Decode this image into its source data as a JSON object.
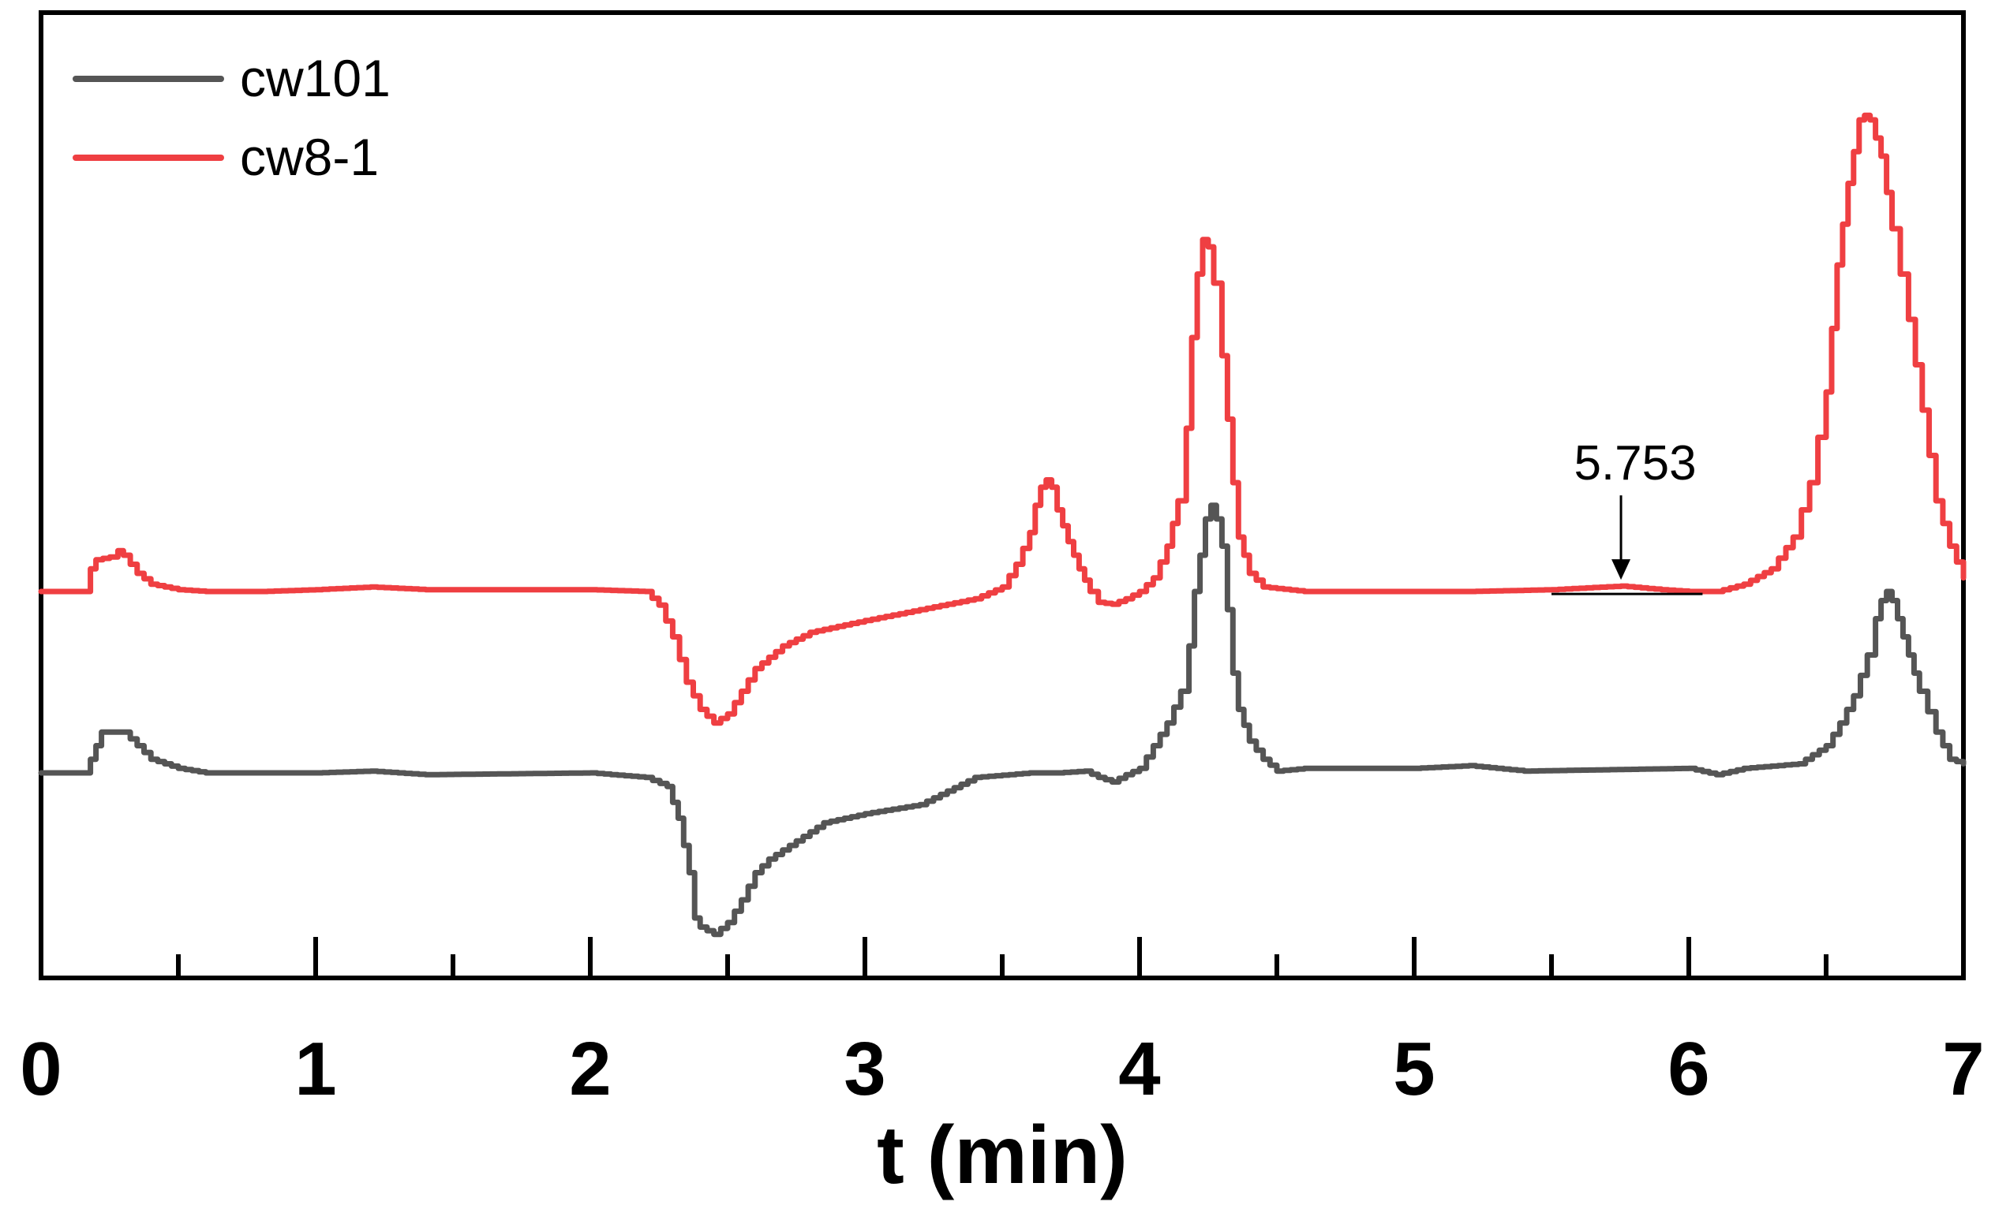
{
  "chart_data": {
    "type": "line",
    "xlabel": "t (min)",
    "xlim": [
      0,
      7
    ],
    "x_major_ticks": [
      0,
      1,
      2,
      3,
      4,
      5,
      6,
      7
    ],
    "x_tick_labels": [
      "0",
      "1",
      "2",
      "3",
      "4",
      "5",
      "6",
      "7"
    ],
    "x_minor_ticks": [
      0.5,
      1.5,
      2.5,
      3.5,
      4.5,
      5.5,
      6.5
    ],
    "ylim": [
      0,
      100
    ],
    "y_axis_labeled": false,
    "grid": false,
    "legend_position": "top-left",
    "series": [
      {
        "name": "cw101",
        "color": "#555555",
        "points": [
          [
            0.0,
            20.0
          ],
          [
            0.15,
            20.0
          ],
          [
            0.18,
            21.5
          ],
          [
            0.2,
            23.0
          ],
          [
            0.22,
            24.5
          ],
          [
            0.28,
            24.5
          ],
          [
            0.3,
            24.5
          ],
          [
            0.35,
            23.0
          ],
          [
            0.4,
            21.5
          ],
          [
            0.5,
            20.5
          ],
          [
            0.6,
            20.0
          ],
          [
            1.0,
            20.0
          ],
          [
            1.2,
            20.2
          ],
          [
            1.4,
            19.8
          ],
          [
            2.0,
            20.0
          ],
          [
            2.2,
            19.5
          ],
          [
            2.28,
            18.5
          ],
          [
            2.32,
            15.0
          ],
          [
            2.36,
            9.0
          ],
          [
            2.38,
            4.0
          ],
          [
            2.4,
            3.0
          ],
          [
            2.45,
            2.2
          ],
          [
            2.5,
            3.5
          ],
          [
            2.55,
            6.0
          ],
          [
            2.6,
            9.0
          ],
          [
            2.65,
            10.5
          ],
          [
            2.75,
            12.5
          ],
          [
            2.85,
            14.5
          ],
          [
            3.0,
            15.5
          ],
          [
            3.2,
            16.5
          ],
          [
            3.4,
            19.5
          ],
          [
            3.6,
            20.0
          ],
          [
            3.7,
            20.0
          ],
          [
            3.8,
            20.2
          ],
          [
            3.85,
            19.5
          ],
          [
            3.9,
            19.0
          ],
          [
            3.95,
            19.8
          ],
          [
            4.0,
            20.5
          ],
          [
            4.05,
            23.0
          ],
          [
            4.1,
            25.5
          ],
          [
            4.15,
            29.0
          ],
          [
            4.18,
            34.0
          ],
          [
            4.2,
            40.0
          ],
          [
            4.22,
            44.0
          ],
          [
            4.24,
            48.0
          ],
          [
            4.26,
            49.5
          ],
          [
            4.28,
            48.0
          ],
          [
            4.3,
            45.0
          ],
          [
            4.32,
            38.0
          ],
          [
            4.34,
            31.0
          ],
          [
            4.36,
            27.0
          ],
          [
            4.4,
            23.5
          ],
          [
            4.45,
            21.5
          ],
          [
            4.5,
            20.2
          ],
          [
            4.6,
            20.5
          ],
          [
            5.0,
            20.5
          ],
          [
            5.2,
            20.8
          ],
          [
            5.4,
            20.2
          ],
          [
            6.0,
            20.5
          ],
          [
            6.1,
            19.8
          ],
          [
            6.2,
            20.5
          ],
          [
            6.4,
            21.0
          ],
          [
            6.5,
            23.0
          ],
          [
            6.55,
            25.5
          ],
          [
            6.6,
            28.5
          ],
          [
            6.65,
            33.0
          ],
          [
            6.68,
            37.0
          ],
          [
            6.7,
            39.0
          ],
          [
            6.72,
            40.0
          ],
          [
            6.74,
            39.0
          ],
          [
            6.76,
            37.0
          ],
          [
            6.8,
            33.0
          ],
          [
            6.84,
            29.0
          ],
          [
            6.9,
            24.5
          ],
          [
            6.95,
            21.5
          ],
          [
            7.0,
            21.0
          ]
        ]
      },
      {
        "name": "cw8-1",
        "color": "#ef3f42",
        "points": [
          [
            0.0,
            40.0
          ],
          [
            0.15,
            40.0
          ],
          [
            0.18,
            42.5
          ],
          [
            0.2,
            43.5
          ],
          [
            0.25,
            43.8
          ],
          [
            0.28,
            44.5
          ],
          [
            0.3,
            44.0
          ],
          [
            0.35,
            42.0
          ],
          [
            0.4,
            40.8
          ],
          [
            0.5,
            40.2
          ],
          [
            0.6,
            40.0
          ],
          [
            0.8,
            40.0
          ],
          [
            1.0,
            40.2
          ],
          [
            1.2,
            40.5
          ],
          [
            1.4,
            40.2
          ],
          [
            2.0,
            40.2
          ],
          [
            2.2,
            40.0
          ],
          [
            2.25,
            38.5
          ],
          [
            2.3,
            35.0
          ],
          [
            2.35,
            30.0
          ],
          [
            2.4,
            27.0
          ],
          [
            2.45,
            25.5
          ],
          [
            2.5,
            26.5
          ],
          [
            2.55,
            29.0
          ],
          [
            2.6,
            31.5
          ],
          [
            2.7,
            34.0
          ],
          [
            2.8,
            35.5
          ],
          [
            3.0,
            36.8
          ],
          [
            3.2,
            38.0
          ],
          [
            3.4,
            39.2
          ],
          [
            3.5,
            40.5
          ],
          [
            3.55,
            43.0
          ],
          [
            3.6,
            46.5
          ],
          [
            3.62,
            49.5
          ],
          [
            3.64,
            51.5
          ],
          [
            3.66,
            52.3
          ],
          [
            3.68,
            51.5
          ],
          [
            3.7,
            49.0
          ],
          [
            3.74,
            45.5
          ],
          [
            3.78,
            42.5
          ],
          [
            3.82,
            40.0
          ],
          [
            3.85,
            38.8
          ],
          [
            3.9,
            38.6
          ],
          [
            3.95,
            39.2
          ],
          [
            4.0,
            40.0
          ],
          [
            4.05,
            41.5
          ],
          [
            4.1,
            45.0
          ],
          [
            4.14,
            50.0
          ],
          [
            4.17,
            58.0
          ],
          [
            4.19,
            68.0
          ],
          [
            4.21,
            75.0
          ],
          [
            4.23,
            78.8
          ],
          [
            4.25,
            78.0
          ],
          [
            4.27,
            74.0
          ],
          [
            4.3,
            66.0
          ],
          [
            4.32,
            59.0
          ],
          [
            4.34,
            52.0
          ],
          [
            4.36,
            46.0
          ],
          [
            4.4,
            42.0
          ],
          [
            4.45,
            40.5
          ],
          [
            4.6,
            40.0
          ],
          [
            5.0,
            40.0
          ],
          [
            5.2,
            40.0
          ],
          [
            5.5,
            40.2
          ],
          [
            5.753,
            40.6
          ],
          [
            5.9,
            40.2
          ],
          [
            6.0,
            40.0
          ],
          [
            6.1,
            40.0
          ],
          [
            6.2,
            40.8
          ],
          [
            6.3,
            42.5
          ],
          [
            6.38,
            46.0
          ],
          [
            6.44,
            52.0
          ],
          [
            6.5,
            62.0
          ],
          [
            6.54,
            76.0
          ],
          [
            6.58,
            85.0
          ],
          [
            6.62,
            92.0
          ],
          [
            6.64,
            92.5
          ],
          [
            6.66,
            92.0
          ],
          [
            6.7,
            88.0
          ],
          [
            6.74,
            80.0
          ],
          [
            6.8,
            70.0
          ],
          [
            6.85,
            60.0
          ],
          [
            6.9,
            50.0
          ],
          [
            6.95,
            45.0
          ],
          [
            7.0,
            41.5
          ]
        ]
      }
    ],
    "annotations": [
      {
        "text": "5.753",
        "x": 5.753,
        "points_to_series": "cw8-1",
        "baseline_from": 5.5,
        "baseline_to": 6.05
      }
    ]
  }
}
